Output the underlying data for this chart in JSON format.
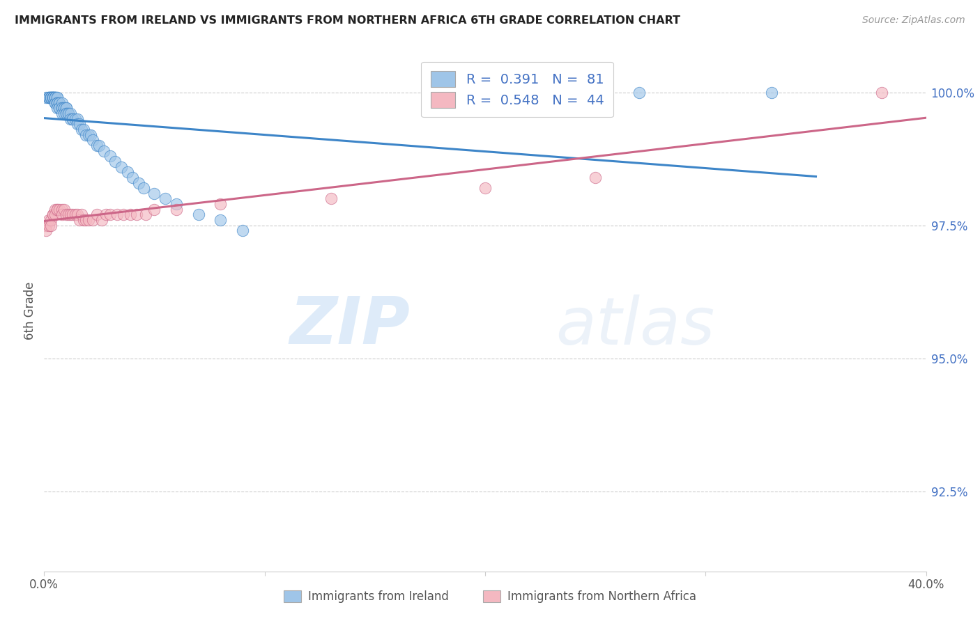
{
  "title": "IMMIGRANTS FROM IRELAND VS IMMIGRANTS FROM NORTHERN AFRICA 6TH GRADE CORRELATION CHART",
  "source": "Source: ZipAtlas.com",
  "ylabel": "6th Grade",
  "ylabel_right_labels": [
    "100.0%",
    "97.5%",
    "95.0%",
    "92.5%"
  ],
  "ylabel_right_values": [
    1.0,
    0.975,
    0.95,
    0.925
  ],
  "xmin": 0.0,
  "xmax": 0.4,
  "ymin": 0.91,
  "ymax": 1.008,
  "R_ireland": 0.391,
  "N_ireland": 81,
  "R_northern_africa": 0.548,
  "N_northern_africa": 44,
  "color_ireland": "#9fc5e8",
  "color_northern_africa": "#f4b8c1",
  "trendline_color_ireland": "#3d85c8",
  "trendline_color_northern_africa": "#cc6688",
  "legend_label_ireland": "Immigrants from Ireland",
  "legend_label_northern_africa": "Immigrants from Northern Africa",
  "watermark_zip": "ZIP",
  "watermark_atlas": "atlas",
  "ireland_x": [
    0.001,
    0.002,
    0.002,
    0.002,
    0.002,
    0.003,
    0.003,
    0.003,
    0.003,
    0.003,
    0.003,
    0.004,
    0.004,
    0.004,
    0.004,
    0.004,
    0.004,
    0.004,
    0.005,
    0.005,
    0.005,
    0.005,
    0.005,
    0.005,
    0.005,
    0.006,
    0.006,
    0.006,
    0.006,
    0.006,
    0.006,
    0.006,
    0.007,
    0.007,
    0.007,
    0.007,
    0.008,
    0.008,
    0.008,
    0.008,
    0.009,
    0.009,
    0.009,
    0.01,
    0.01,
    0.01,
    0.01,
    0.011,
    0.011,
    0.012,
    0.012,
    0.013,
    0.013,
    0.014,
    0.015,
    0.015,
    0.016,
    0.017,
    0.018,
    0.019,
    0.02,
    0.021,
    0.022,
    0.024,
    0.025,
    0.027,
    0.03,
    0.032,
    0.035,
    0.038,
    0.04,
    0.043,
    0.045,
    0.05,
    0.055,
    0.06,
    0.07,
    0.08,
    0.09,
    0.27,
    0.33
  ],
  "ireland_y": [
    0.999,
    0.999,
    0.999,
    0.999,
    0.999,
    0.999,
    0.999,
    0.999,
    0.999,
    0.999,
    0.999,
    0.999,
    0.999,
    0.999,
    0.999,
    0.999,
    0.999,
    0.999,
    0.999,
    0.999,
    0.999,
    0.999,
    0.999,
    0.998,
    0.998,
    0.999,
    0.999,
    0.998,
    0.998,
    0.998,
    0.998,
    0.997,
    0.998,
    0.998,
    0.997,
    0.997,
    0.998,
    0.997,
    0.997,
    0.996,
    0.997,
    0.997,
    0.996,
    0.997,
    0.997,
    0.996,
    0.996,
    0.996,
    0.996,
    0.996,
    0.995,
    0.995,
    0.995,
    0.995,
    0.995,
    0.994,
    0.994,
    0.993,
    0.993,
    0.992,
    0.992,
    0.992,
    0.991,
    0.99,
    0.99,
    0.989,
    0.988,
    0.987,
    0.986,
    0.985,
    0.984,
    0.983,
    0.982,
    0.981,
    0.98,
    0.979,
    0.977,
    0.976,
    0.974,
    1.0,
    1.0
  ],
  "africa_x": [
    0.001,
    0.001,
    0.002,
    0.002,
    0.003,
    0.003,
    0.004,
    0.004,
    0.005,
    0.005,
    0.006,
    0.006,
    0.007,
    0.008,
    0.008,
    0.009,
    0.01,
    0.011,
    0.012,
    0.013,
    0.014,
    0.015,
    0.016,
    0.017,
    0.018,
    0.019,
    0.02,
    0.022,
    0.024,
    0.026,
    0.028,
    0.03,
    0.033,
    0.036,
    0.039,
    0.042,
    0.046,
    0.05,
    0.06,
    0.08,
    0.13,
    0.2,
    0.25,
    0.38
  ],
  "africa_y": [
    0.975,
    0.974,
    0.976,
    0.975,
    0.976,
    0.975,
    0.977,
    0.977,
    0.978,
    0.977,
    0.978,
    0.978,
    0.978,
    0.978,
    0.977,
    0.978,
    0.977,
    0.977,
    0.977,
    0.977,
    0.977,
    0.977,
    0.976,
    0.977,
    0.976,
    0.976,
    0.976,
    0.976,
    0.977,
    0.976,
    0.977,
    0.977,
    0.977,
    0.977,
    0.977,
    0.977,
    0.977,
    0.978,
    0.978,
    0.979,
    0.98,
    0.982,
    0.984,
    1.0
  ]
}
